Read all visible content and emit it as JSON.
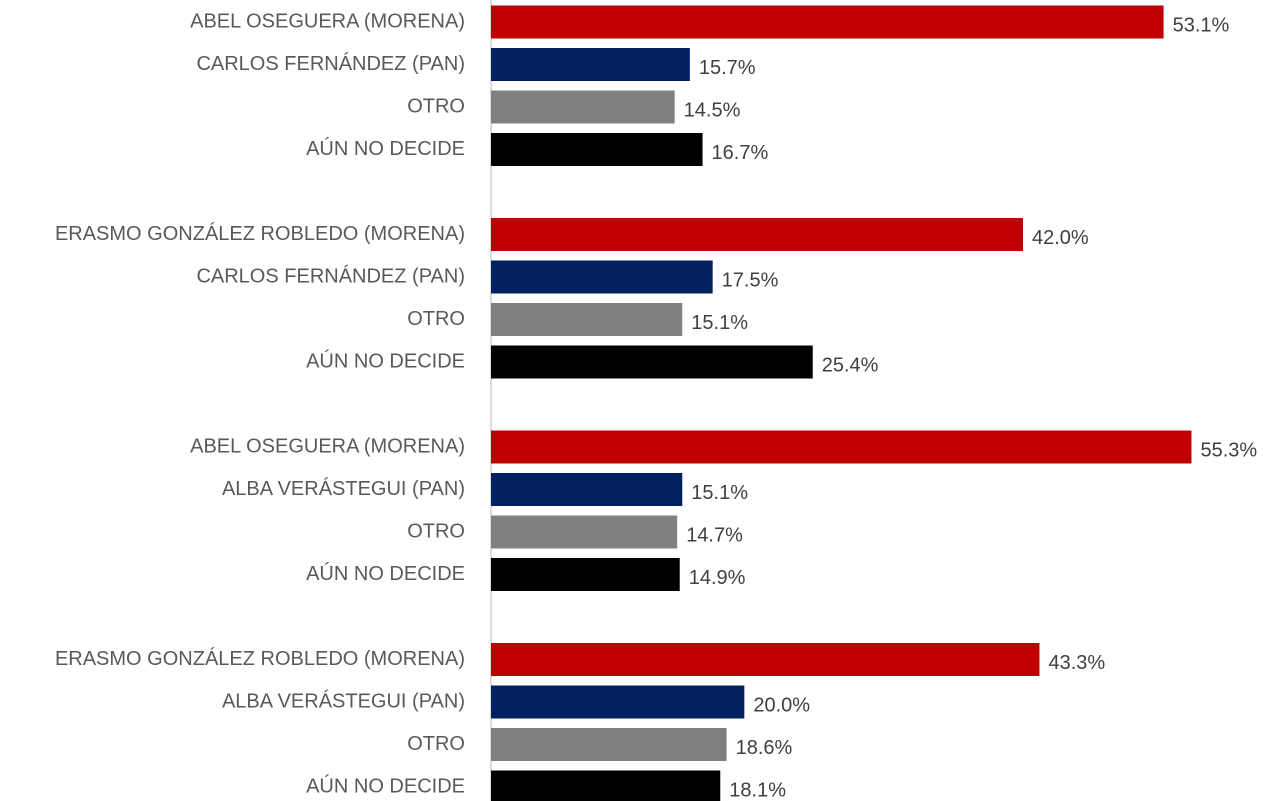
{
  "chart_data": {
    "type": "bar",
    "orientation": "horizontal",
    "categories": [
      "ABEL OSEGUERA (MORENA)",
      "CARLOS FERNÁNDEZ (PAN)",
      "OTRO",
      "AÚN NO DECIDE",
      null,
      "ERASMO GONZÁLEZ ROBLEDO (MORENA)",
      "CARLOS FERNÁNDEZ (PAN)",
      "OTRO",
      "AÚN NO DECIDE",
      null,
      "ABEL OSEGUERA (MORENA)",
      "ALBA VERÁSTEGUI (PAN)",
      "OTRO",
      "AÚN NO DECIDE",
      null,
      "ERASMO GONZÁLEZ ROBLEDO (MORENA)",
      "ALBA VERÁSTEGUI (PAN)",
      "OTRO",
      "AÚN NO DECIDE"
    ],
    "values": [
      53.1,
      15.7,
      14.5,
      16.7,
      null,
      42.0,
      17.5,
      15.1,
      25.4,
      null,
      55.3,
      15.1,
      14.7,
      14.9,
      null,
      43.3,
      20.0,
      18.6,
      18.1
    ],
    "value_labels": [
      "53.1%",
      "15.7%",
      "14.5%",
      "16.7%",
      null,
      "42.0%",
      "17.5%",
      "15.1%",
      "25.4%",
      null,
      "55.3%",
      "15.1%",
      "14.7%",
      "14.9%",
      null,
      "43.3%",
      "20.0%",
      "18.6%",
      "18.1%"
    ],
    "colors": [
      "#c00000",
      "#002060",
      "#808080",
      "#000000",
      null,
      "#c00000",
      "#002060",
      "#808080",
      "#000000",
      null,
      "#c00000",
      "#002060",
      "#808080",
      "#000000",
      null,
      "#c00000",
      "#002060",
      "#808080",
      "#000000"
    ],
    "xlim": [
      0,
      60
    ]
  }
}
